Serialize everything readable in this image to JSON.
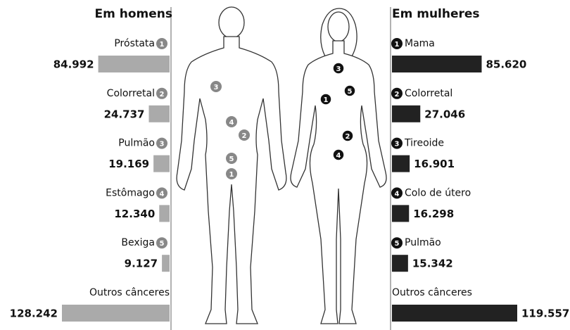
{
  "chart_data": [
    {
      "type": "bar",
      "title": "Em homens",
      "categories": [
        "Próstata",
        "Colorretal",
        "Pulmão",
        "Estômago",
        "Bexiga",
        "Outros cânceres"
      ],
      "ranks": [
        1,
        2,
        3,
        4,
        5,
        null
      ],
      "values": [
        84992,
        24737,
        19169,
        12340,
        9127,
        128242
      ],
      "value_labels": [
        "84.992",
        "24.737",
        "19.169",
        "12.340",
        "9.127",
        "128.242"
      ],
      "color": "#aaaaaa"
    },
    {
      "type": "bar",
      "title": "Em mulheres",
      "categories": [
        "Mama",
        "Colorretal",
        "Tireoide",
        "Colo de útero",
        "Pulmão",
        "Outros cânceres"
      ],
      "ranks": [
        1,
        2,
        3,
        4,
        5,
        null
      ],
      "values": [
        85620,
        27046,
        16901,
        16298,
        15342,
        119557
      ],
      "value_labels": [
        "85.620",
        "27.046",
        "16.901",
        "16.298",
        "15.342",
        "119.557"
      ],
      "color": "#222222"
    }
  ]
}
